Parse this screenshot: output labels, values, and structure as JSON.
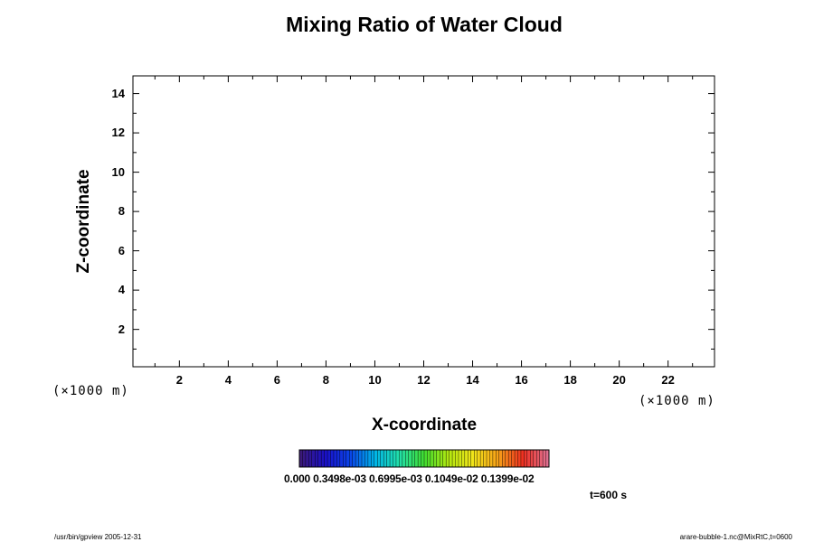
{
  "chart_data": {
    "type": "heatmap",
    "title": "Mixing Ratio of Water Cloud",
    "xlabel": "X-coordinate",
    "ylabel": "Z-coordinate",
    "x_unit": "(×1000 m)",
    "y_unit": "(×1000 m)",
    "xlim": [
      0.1,
      23.9
    ],
    "ylim": [
      0.1,
      14.9
    ],
    "x_ticks": [
      2,
      4,
      6,
      8,
      10,
      12,
      14,
      16,
      18,
      20,
      22
    ],
    "y_ticks": [
      2,
      4,
      6,
      8,
      10,
      12,
      14
    ],
    "values": [],
    "colorbar": {
      "labels_text": "0.000 0.3498e-03 0.6995e-03 0.1049e-02 0.1399e-02",
      "min": 0.0,
      "max": 0.0014,
      "colormap": [
        "#3b1a7a",
        "#1a10c8",
        "#0a44e8",
        "#00b4e8",
        "#23e0a8",
        "#40dc30",
        "#b4e810",
        "#f2e41a",
        "#f6a018",
        "#ee3020",
        "#e07090"
      ]
    },
    "time_label": "t=600 s",
    "grid": false
  },
  "footer": {
    "left": "/usr/bin/gpview 2005-12-31",
    "right": "arare-bubble-1.nc@MixRtC,t=0600"
  }
}
